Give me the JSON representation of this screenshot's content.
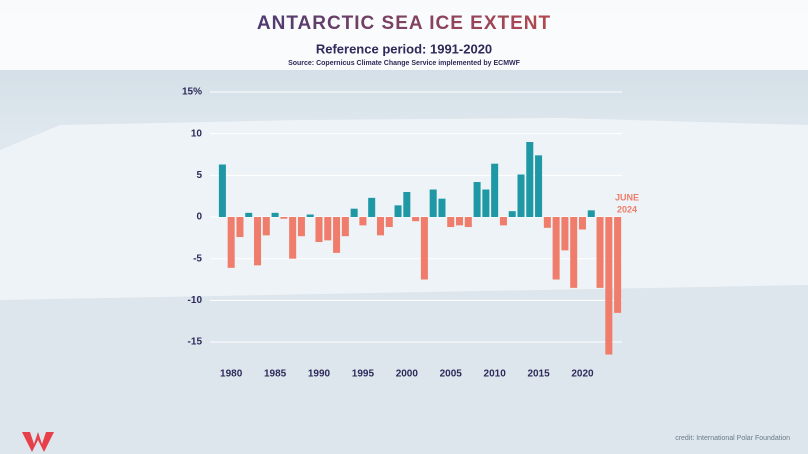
{
  "chart_data": {
    "type": "bar",
    "title": "ANTARCTIC SEA ICE EXTENT",
    "subtitle": "Reference period: 1991-2020",
    "source": "Source: Copernicus Climate Change Service implemented by ECMWF",
    "credit": "credit: International Polar Foundation",
    "annotation": [
      "JUNE",
      "2024"
    ],
    "x": [
      1979,
      1980,
      1981,
      1982,
      1983,
      1984,
      1985,
      1986,
      1987,
      1988,
      1989,
      1990,
      1991,
      1992,
      1993,
      1994,
      1995,
      1996,
      1997,
      1998,
      1999,
      2000,
      2001,
      2002,
      2003,
      2004,
      2005,
      2006,
      2007,
      2008,
      2009,
      2010,
      2011,
      2012,
      2013,
      2014,
      2015,
      2016,
      2017,
      2018,
      2019,
      2020,
      2021,
      2022,
      2023,
      2024
    ],
    "values": [
      6.3,
      -6.1,
      -2.4,
      0.5,
      -5.8,
      -2.2,
      0.5,
      -0.2,
      -5.0,
      -2.3,
      0.3,
      -3.0,
      -2.8,
      -4.3,
      -2.3,
      1.0,
      -1.0,
      2.3,
      -2.2,
      -1.2,
      1.4,
      3.0,
      -0.5,
      -7.5,
      3.3,
      2.2,
      -1.2,
      -1.0,
      -1.2,
      4.2,
      3.3,
      6.4,
      -1.0,
      0.7,
      5.1,
      9.0,
      7.4,
      -1.3,
      -7.5,
      -4.0,
      -8.5,
      -1.5,
      0.8,
      -8.5,
      -16.5,
      -11.5
    ],
    "positive_color": "#1f98a6",
    "negative_color": "#f07d6b",
    "xlim": [
      1978.5,
      2024.5
    ],
    "xticks": [
      1980,
      1985,
      1990,
      1995,
      2000,
      2005,
      2010,
      2015,
      2020
    ],
    "ylim": [
      -17,
      15
    ],
    "yticks": [
      {
        "value": 15,
        "label": "15%"
      },
      10,
      5,
      0,
      -5,
      -10,
      -15
    ],
    "grid": true
  }
}
